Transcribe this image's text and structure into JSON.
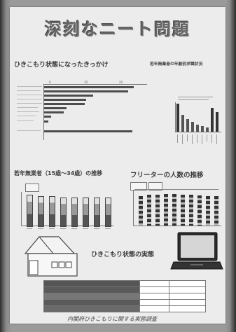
{
  "poster": {
    "title": "深刻なニート問題",
    "section_trigger": "ひきこもり状態になったきっかけ",
    "section_youth_unemployed": "若年無業者の年齢別求職状況",
    "section_youth_trend": "若年無業者（15歳～34歳）の推移",
    "section_freeter": "フリーターの人数の推移",
    "section_hikikomori_reality": "ひきこもり状態の実態",
    "source_note": "内閣府ひきこもりに関する実態調査"
  },
  "colors": {
    "board": "#9a9a9a",
    "paper": "#ececec",
    "ink": "#3c3c3c",
    "bar_dark": "#4d4d4d",
    "bar_light": "#c8c8c8"
  },
  "icons": {
    "house": "house-illustration",
    "laptop": "laptop-illustration"
  }
}
